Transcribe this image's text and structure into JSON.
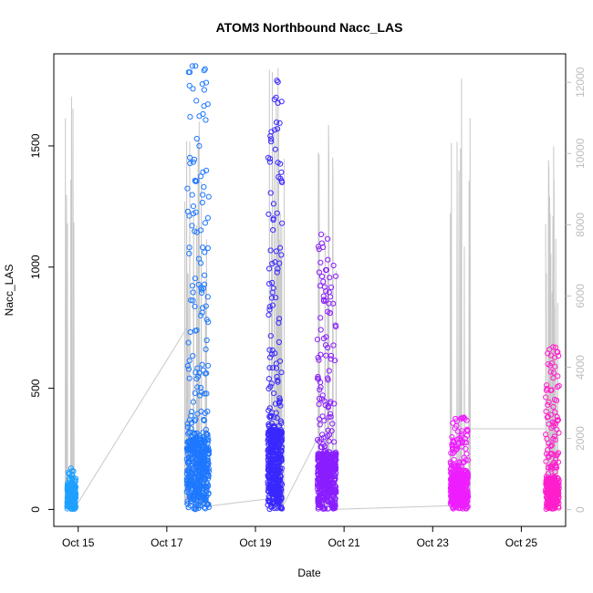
{
  "chart_data": {
    "type": "scatter",
    "title": "ATOM3 Northbound Nacc_LAS",
    "xlabel": "Date",
    "ylabel": "Nacc_LAS",
    "x_ticks": [
      "Oct 15",
      "Oct 17",
      "Oct 19",
      "Oct 21",
      "Oct 23",
      "Oct 25"
    ],
    "x_tick_days": [
      15,
      17,
      19,
      21,
      23,
      25
    ],
    "xlim_days": [
      14.45,
      26.0
    ],
    "y_ticks": [
      0,
      500,
      1000,
      1500
    ],
    "ylim": [
      -70,
      1880
    ],
    "y2_ticks": [
      0,
      2000,
      4000,
      6000,
      8000,
      10000,
      12000
    ],
    "y2lim": [
      -470,
      12800
    ],
    "series_colors": [
      "#1ea0ff",
      "#1e78ff",
      "#1e44ff",
      "#3a1eff",
      "#8a1eff",
      "#ee1eff",
      "#ff1ecc"
    ],
    "line_color": "#c8c8c8",
    "bursts": [
      {
        "day_start": 14.75,
        "day_end": 14.95,
        "core_max": 95,
        "upper_max": 170,
        "color": "#1ea0ff",
        "n": 160
      },
      {
        "day_start": 17.45,
        "day_end": 17.95,
        "core_max": 290,
        "upper_max": 1830,
        "color": "#1e78ff",
        "n": 520
      },
      {
        "day_start": 19.28,
        "day_end": 19.6,
        "core_max": 330,
        "upper_max": 1770,
        "color": "#3a28ff",
        "n": 500
      },
      {
        "day_start": 20.4,
        "day_end": 20.82,
        "core_max": 230,
        "upper_max": 1135,
        "color": "#8a1eff",
        "n": 480
      },
      {
        "day_start": 23.4,
        "day_end": 23.8,
        "core_max": 150,
        "upper_max": 380,
        "color": "#ee1eff",
        "n": 420
      },
      {
        "day_start": 25.55,
        "day_end": 25.85,
        "core_max": 130,
        "upper_max": 670,
        "color": "#ff1ecc",
        "n": 340
      }
    ],
    "secondary_bursts": [
      {
        "day_start": 14.7,
        "day_end": 14.95,
        "max": 11600
      },
      {
        "day_start": 17.4,
        "day_end": 17.95,
        "max": 10900
      },
      {
        "day_start": 19.3,
        "day_end": 19.65,
        "max": 12400
      },
      {
        "day_start": 20.35,
        "day_end": 20.85,
        "max": 10800
      },
      {
        "day_start": 23.35,
        "day_end": 23.85,
        "max": 12100
      },
      {
        "day_start": 25.55,
        "day_end": 25.85,
        "max": 10200
      }
    ],
    "connectors": [
      {
        "x": [
          14.95,
          17.45
        ],
        "y": [
          100,
          5100
        ],
        "axis": "y2"
      },
      {
        "x": [
          17.95,
          19.28
        ],
        "y": [
          100,
          300
        ],
        "axis": "y2"
      },
      {
        "x": [
          19.6,
          20.4
        ],
        "y": [
          50,
          2000
        ],
        "axis": "y2"
      },
      {
        "x": [
          20.82,
          23.4
        ],
        "y": [
          10,
          110
        ],
        "axis": "y2"
      },
      {
        "x": [
          23.8,
          25.55
        ],
        "y": [
          2270,
          2270
        ],
        "axis": "y2"
      }
    ],
    "grid": false,
    "legend": "none"
  }
}
